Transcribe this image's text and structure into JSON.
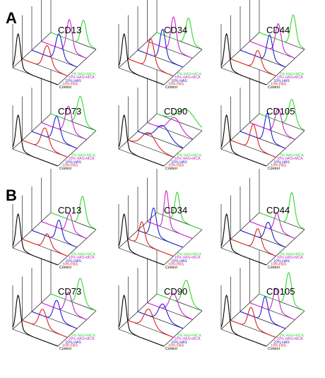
{
  "figure": {
    "panels": [
      {
        "label": "A"
      },
      {
        "label": "B"
      }
    ]
  },
  "colors": {
    "Control": "#000000",
    "10% FBS": "#e0201c",
    "10% HAS": "#1f1fd6",
    "10% HAS+MCA": "#d21fd2",
    "2% HAS+MCA": "#2fd92f"
  },
  "chart_data": [
    {
      "panel": "A",
      "type": "histogram-3d",
      "title": "CD13",
      "series": [
        {
          "name": "Control",
          "peak": 0.12,
          "width": 0.05,
          "height": 0.9
        },
        {
          "name": "10% FBS",
          "peak": 0.55,
          "width": 0.08,
          "height": 0.55
        },
        {
          "name": "10% HAS",
          "peak": 0.6,
          "width": 0.07,
          "height": 0.65
        },
        {
          "name": "10% HAS+MCA",
          "peak": 0.62,
          "width": 0.06,
          "height": 0.8
        },
        {
          "name": "2% HAS+MCA",
          "peak": 0.72,
          "width": 0.06,
          "height": 0.6
        }
      ]
    },
    {
      "panel": "A",
      "type": "histogram-3d",
      "title": "CD34",
      "series": [
        {
          "name": "Control",
          "peak": 0.12,
          "width": 0.05,
          "height": 0.9
        },
        {
          "name": "10% FBS",
          "peak": 0.5,
          "width": 0.07,
          "height": 0.7
        },
        {
          "name": "10% HAS",
          "peak": 0.55,
          "width": 0.06,
          "height": 0.75
        },
        {
          "name": "10% HAS+MCA",
          "peak": 0.58,
          "width": 0.06,
          "height": 0.85
        },
        {
          "name": "2% HAS+MCA",
          "peak": 0.7,
          "width": 0.06,
          "height": 0.65
        }
      ]
    },
    {
      "panel": "A",
      "type": "histogram-3d",
      "title": "CD44",
      "series": [
        {
          "name": "Control",
          "peak": 0.12,
          "width": 0.05,
          "height": 0.9
        },
        {
          "name": "10% FBS",
          "peak": 0.6,
          "width": 0.07,
          "height": 0.45
        },
        {
          "name": "10% HAS",
          "peak": 0.65,
          "width": 0.06,
          "height": 0.65
        },
        {
          "name": "10% HAS+MCA",
          "peak": 0.63,
          "width": 0.06,
          "height": 0.7
        },
        {
          "name": "2% HAS+MCA",
          "peak": 0.75,
          "width": 0.06,
          "height": 0.75
        }
      ]
    },
    {
      "panel": "A",
      "type": "histogram-3d",
      "title": "CD73",
      "series": [
        {
          "name": "Control",
          "peak": 0.12,
          "width": 0.05,
          "height": 0.9
        },
        {
          "name": "10% FBS",
          "peak": 0.5,
          "width": 0.08,
          "height": 0.5
        },
        {
          "name": "10% HAS",
          "peak": 0.55,
          "width": 0.07,
          "height": 0.6
        },
        {
          "name": "10% HAS+MCA",
          "peak": 0.6,
          "width": 0.07,
          "height": 0.65
        },
        {
          "name": "2% HAS+MCA",
          "peak": 0.65,
          "width": 0.07,
          "height": 0.7
        }
      ]
    },
    {
      "panel": "A",
      "type": "histogram-3d",
      "title": "CD90",
      "series": [
        {
          "name": "Control",
          "peak": 0.12,
          "width": 0.05,
          "height": 0.9
        },
        {
          "name": "10% FBS",
          "peak": 0.45,
          "width": 0.14,
          "height": 0.35
        },
        {
          "name": "10% HAS",
          "peak": 0.55,
          "width": 0.14,
          "height": 0.35
        },
        {
          "name": "10% HAS+MCA",
          "peak": 0.6,
          "width": 0.13,
          "height": 0.35
        },
        {
          "name": "2% HAS+MCA",
          "peak": 0.65,
          "width": 0.18,
          "height": 0.35
        }
      ]
    },
    {
      "panel": "A",
      "type": "histogram-3d",
      "title": "CD105",
      "series": [
        {
          "name": "Control",
          "peak": 0.12,
          "width": 0.05,
          "height": 0.9
        },
        {
          "name": "10% FBS",
          "peak": 0.5,
          "width": 0.07,
          "height": 0.6
        },
        {
          "name": "10% HAS",
          "peak": 0.6,
          "width": 0.06,
          "height": 0.7
        },
        {
          "name": "10% HAS+MCA",
          "peak": 0.63,
          "width": 0.07,
          "height": 0.6
        },
        {
          "name": "2% HAS+MCA",
          "peak": 0.72,
          "width": 0.07,
          "height": 0.65
        }
      ]
    },
    {
      "panel": "B",
      "type": "histogram-3d",
      "title": "CD13",
      "series": [
        {
          "name": "Control",
          "peak": 0.12,
          "width": 0.05,
          "height": 0.9
        },
        {
          "name": "10% FBS",
          "peak": 0.55,
          "width": 0.07,
          "height": 0.35
        },
        {
          "name": "10% HAS",
          "peak": 0.6,
          "width": 0.06,
          "height": 0.5
        },
        {
          "name": "10% HAS+MCA",
          "peak": 0.62,
          "width": 0.06,
          "height": 0.45
        },
        {
          "name": "2% HAS+MCA",
          "peak": 0.7,
          "width": 0.06,
          "height": 0.7
        }
      ]
    },
    {
      "panel": "B",
      "type": "histogram-3d",
      "title": "CD34",
      "series": [
        {
          "name": "Control",
          "peak": 0.12,
          "width": 0.05,
          "height": 0.9
        },
        {
          "name": "10% FBS",
          "peak": 0.3,
          "width": 0.06,
          "height": 0.55
        },
        {
          "name": "10% HAS",
          "peak": 0.35,
          "width": 0.06,
          "height": 0.7
        },
        {
          "name": "10% HAS+MCA",
          "peak": 0.42,
          "width": 0.05,
          "height": 0.95
        },
        {
          "name": "2% HAS+MCA",
          "peak": 0.45,
          "width": 0.05,
          "height": 0.7
        }
      ]
    },
    {
      "panel": "B",
      "type": "histogram-3d",
      "title": "CD44",
      "series": [
        {
          "name": "Control",
          "peak": 0.12,
          "width": 0.05,
          "height": 0.9
        },
        {
          "name": "10% FBS",
          "peak": 0.6,
          "width": 0.07,
          "height": 0.5
        },
        {
          "name": "10% HAS",
          "peak": 0.62,
          "width": 0.07,
          "height": 0.45
        },
        {
          "name": "10% HAS+MCA",
          "peak": 0.6,
          "width": 0.06,
          "height": 0.45
        },
        {
          "name": "2% HAS+MCA",
          "peak": 0.72,
          "width": 0.06,
          "height": 0.8
        }
      ]
    },
    {
      "panel": "B",
      "type": "histogram-3d",
      "title": "CD73",
      "series": [
        {
          "name": "Control",
          "peak": 0.12,
          "width": 0.05,
          "height": 0.9
        },
        {
          "name": "10% FBS",
          "peak": 0.45,
          "width": 0.08,
          "height": 0.45
        },
        {
          "name": "10% HAS",
          "peak": 0.55,
          "width": 0.07,
          "height": 0.5
        },
        {
          "name": "10% HAS+MCA",
          "peak": 0.6,
          "width": 0.07,
          "height": 0.5
        },
        {
          "name": "2% HAS+MCA",
          "peak": 0.65,
          "width": 0.07,
          "height": 0.65
        }
      ]
    },
    {
      "panel": "B",
      "type": "histogram-3d",
      "title": "CD90",
      "series": [
        {
          "name": "Control",
          "peak": 0.12,
          "width": 0.05,
          "height": 0.9
        },
        {
          "name": "10% FBS",
          "peak": 0.45,
          "width": 0.1,
          "height": 0.45
        },
        {
          "name": "10% HAS",
          "peak": 0.55,
          "width": 0.09,
          "height": 0.4
        },
        {
          "name": "10% HAS+MCA",
          "peak": 0.58,
          "width": 0.09,
          "height": 0.45
        },
        {
          "name": "2% HAS+MCA",
          "peak": 0.65,
          "width": 0.08,
          "height": 0.6
        }
      ]
    },
    {
      "panel": "B",
      "type": "histogram-3d",
      "title": "CD105",
      "series": [
        {
          "name": "Control",
          "peak": 0.12,
          "width": 0.05,
          "height": 0.9
        },
        {
          "name": "10% FBS",
          "peak": 0.45,
          "width": 0.07,
          "height": 0.5
        },
        {
          "name": "10% HAS",
          "peak": 0.55,
          "width": 0.06,
          "height": 0.6
        },
        {
          "name": "10% HAS+MCA",
          "peak": 0.58,
          "width": 0.06,
          "height": 0.6
        },
        {
          "name": "2% HAS+MCA",
          "peak": 0.65,
          "width": 0.06,
          "height": 0.8
        }
      ]
    }
  ]
}
